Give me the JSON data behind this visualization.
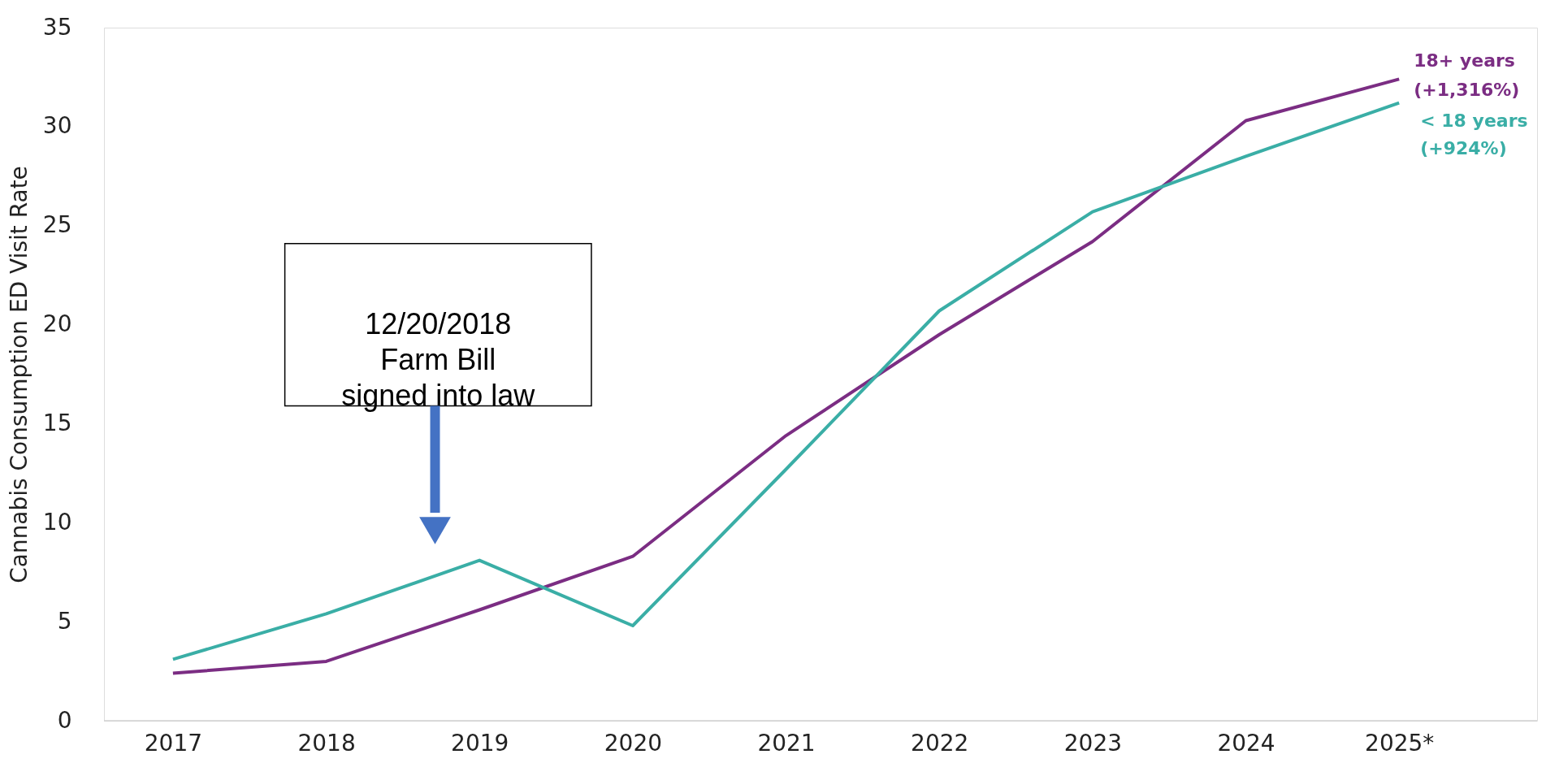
{
  "chart_data": {
    "type": "line",
    "ylabel": "Cannabis Consumption ED Visit Rate",
    "categories": [
      "2017",
      "2018",
      "2019",
      "2020",
      "2021",
      "2022",
      "2023",
      "2024",
      "2025*"
    ],
    "series": [
      {
        "name": "18+ years",
        "color": "#7b2d83",
        "values": [
          2.4,
          3.0,
          5.6,
          8.3,
          14.4,
          19.5,
          24.2,
          30.3,
          32.4
        ]
      },
      {
        "name": "< 18 years",
        "color": "#3aaea6",
        "values": [
          3.1,
          5.4,
          8.1,
          4.8,
          12.7,
          20.7,
          25.7,
          28.5,
          31.2
        ]
      }
    ],
    "ylim": [
      0,
      35
    ],
    "yticks": [
      0,
      5,
      10,
      15,
      20,
      25,
      30,
      35
    ],
    "grid": false,
    "line_style": "solid",
    "marker": "none",
    "annotations": [
      {
        "text": "(+1,316%)",
        "x": "2025*",
        "y": 32.4
      },
      {
        "text": "(+924%)",
        "x": "2025*",
        "y": 31.2
      },
      "12/20/2018\nFarm Bill\nsigned into law"
    ]
  }
}
